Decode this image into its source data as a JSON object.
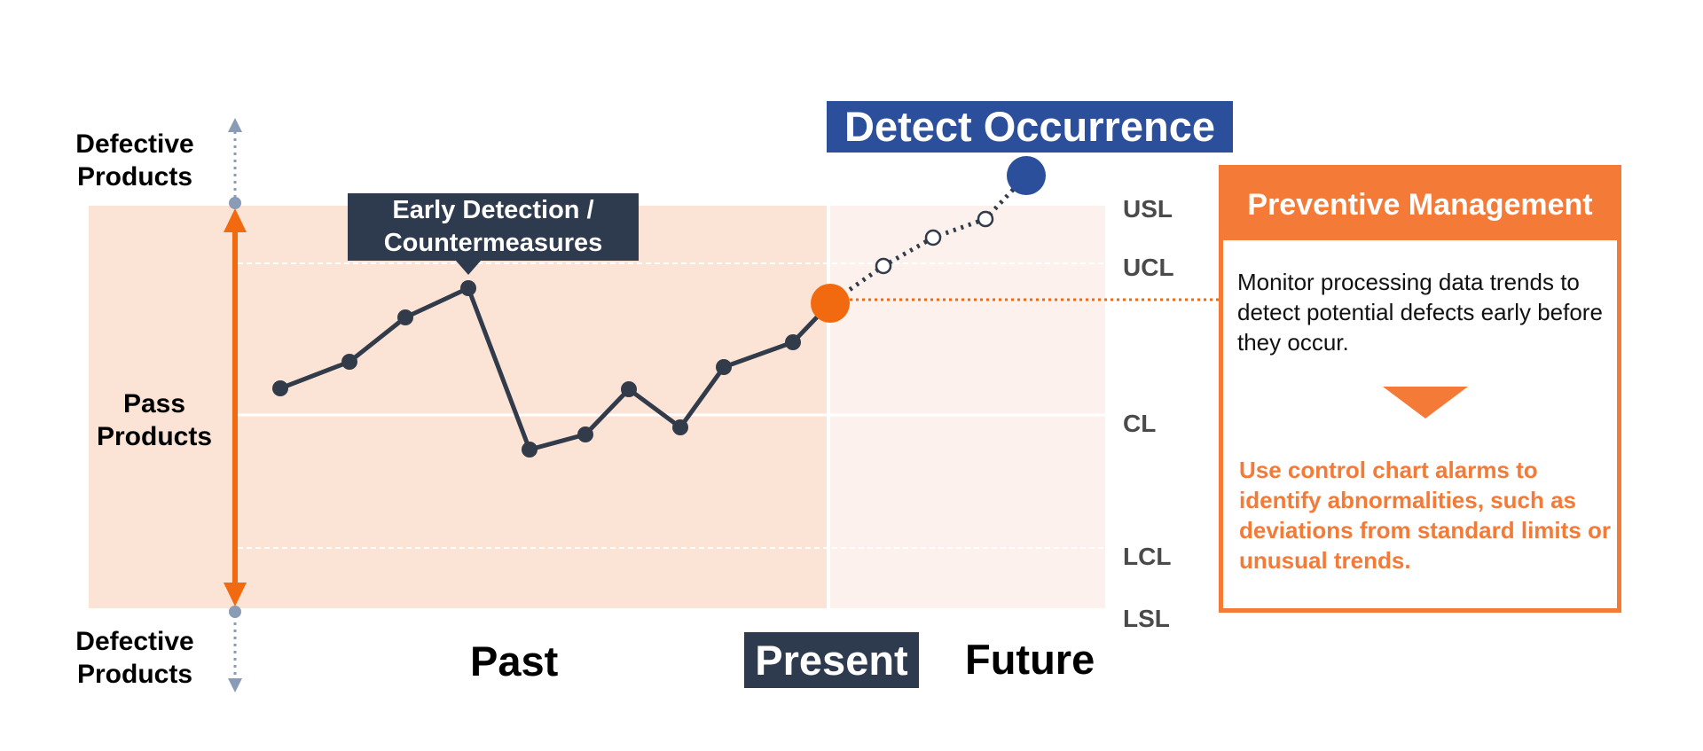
{
  "title": "Detect Occurrence",
  "callout": "Early Detection /\nCountermeasures",
  "side_labels": {
    "top": "Defective\nProducts",
    "middle": "Pass\nProducts",
    "bottom": "Defective\nProducts"
  },
  "limits": {
    "usl": "USL",
    "ucl": "UCL",
    "cl": "CL",
    "lcl": "LCL",
    "lsl": "LSL"
  },
  "time_labels": {
    "past": "Past",
    "present": "Present",
    "future": "Future"
  },
  "panel": {
    "title": "Preventive Management",
    "description": "Monitor processing data trends to detect potential defects early before they occur.",
    "note": "Use control chart alarms to identify abnormalities, such as deviations from standard limits or unusual trends."
  },
  "colors": {
    "orange": "#f26a10",
    "panel_orange": "#f47a37",
    "navy": "#2e3a4d",
    "blue": "#2c4f9b",
    "past_bg": "#fbe4d6",
    "future_bg": "#fcf1ec"
  }
}
